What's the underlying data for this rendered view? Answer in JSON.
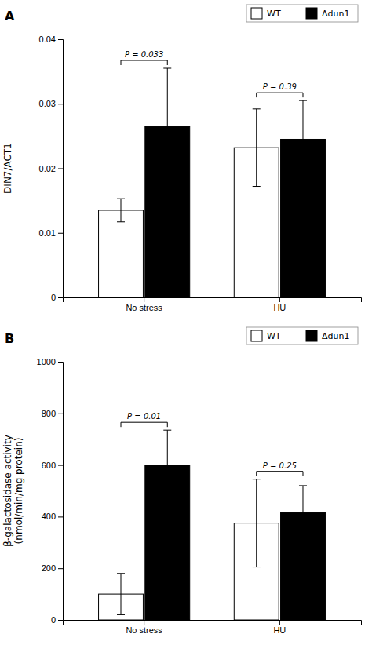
{
  "chart_data": [
    {
      "type": "bar",
      "title": "A",
      "categories": [
        "No stress",
        "HU"
      ],
      "series": [
        {
          "name": "WT",
          "color": "#ffffff",
          "values": [
            0.0135,
            0.0232
          ],
          "errors": [
            0.0018,
            0.006
          ]
        },
        {
          "name": "Δdun1",
          "color": "#000000",
          "values": [
            0.0265,
            0.0245
          ],
          "errors": [
            0.009,
            0.006
          ]
        }
      ],
      "ylabel": "DIN7/ACT1",
      "ylim": [
        0,
        0.04
      ],
      "yticks": [
        0,
        0.01,
        0.02,
        0.03,
        0.04
      ],
      "annotations": [
        "P = 0.033",
        "P = 0.39"
      ],
      "legend": "upper right",
      "grid": false
    },
    {
      "type": "bar",
      "title": "B",
      "categories": [
        "No stress",
        "HU"
      ],
      "series": [
        {
          "name": "WT",
          "color": "#ffffff",
          "values": [
            100,
            375
          ],
          "errors": [
            80,
            170
          ]
        },
        {
          "name": "Δdun1",
          "color": "#000000",
          "values": [
            600,
            415
          ],
          "errors": [
            135,
            105
          ]
        }
      ],
      "ylabel": "β-galactosidase activity\n(nmol/min/mg protein)",
      "ylim": [
        0,
        1000
      ],
      "yticks": [
        0,
        200,
        400,
        600,
        800,
        1000
      ],
      "annotations": [
        "P = 0.01",
        "P = 0.25"
      ],
      "legend": "upper right",
      "grid": false
    }
  ]
}
